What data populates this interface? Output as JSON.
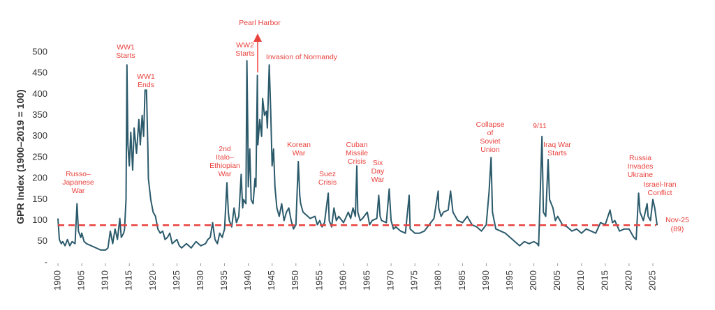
{
  "chart_data": {
    "type": "line",
    "y_label": "GPR Index (1900–2019 = 100)",
    "xlim": [
      1900,
      2025
    ],
    "xticks": [
      1900,
      1905,
      1910,
      1915,
      1920,
      1925,
      1930,
      1935,
      1940,
      1945,
      1950,
      1955,
      1960,
      1965,
      1970,
      1975,
      1980,
      1985,
      1990,
      1995,
      2000,
      2005,
      2010,
      2015,
      2020,
      2025
    ],
    "ylim": [
      0,
      500
    ],
    "yticks": [
      {
        "value": 0,
        "label": "-"
      },
      50,
      100,
      150,
      200,
      250,
      300,
      350,
      400,
      450,
      500
    ],
    "series": [
      {
        "color": "#2b5a6b",
        "x": [
          1900,
          1900.3,
          1900.7,
          1901,
          1901.5,
          1902,
          1902.5,
          1903,
          1903.6,
          1904,
          1904.3,
          1904.8,
          1905,
          1905.5,
          1906,
          1907,
          1908,
          1909,
          1910,
          1910.5,
          1911,
          1911.5,
          1912,
          1912.5,
          1913,
          1913.3,
          1913.8,
          1914,
          1914.3,
          1914.5,
          1914.7,
          1915,
          1915.3,
          1915.7,
          1916,
          1916.5,
          1917,
          1917.3,
          1917.7,
          1918,
          1918.3,
          1918.6,
          1918.9,
          1919,
          1919.5,
          1920,
          1920.5,
          1921,
          1921.5,
          1922,
          1922.5,
          1923,
          1923.5,
          1924,
          1925,
          1925.5,
          1926,
          1927,
          1928,
          1929,
          1930,
          1931,
          1931.5,
          1932,
          1932.5,
          1933,
          1933.5,
          1934,
          1934.5,
          1935,
          1935.5,
          1935.8,
          1936,
          1936.5,
          1937,
          1937.5,
          1938,
          1938.5,
          1938.8,
          1939,
          1939.5,
          1939.7,
          1939.9,
          1940,
          1940.3,
          1940.6,
          1941,
          1941.4,
          1941.6,
          1941.9,
          1942,
          1942.4,
          1942.8,
          1943,
          1943.4,
          1943.8,
          1944,
          1944.4,
          1944.7,
          1945,
          1945.3,
          1945.6,
          1946,
          1946.5,
          1947,
          1947.5,
          1948,
          1948.5,
          1949,
          1949.5,
          1950,
          1950.5,
          1950.8,
          1951,
          1951.5,
          1952,
          1953,
          1954,
          1954.5,
          1955,
          1955.5,
          1956,
          1956.8,
          1957,
          1957.5,
          1958,
          1958.5,
          1959,
          1960,
          1961,
          1961.5,
          1962,
          1962.5,
          1962.8,
          1963,
          1963.5,
          1964,
          1965,
          1965.5,
          1966,
          1967,
          1967.4,
          1967.7,
          1968,
          1969,
          1969.6,
          1970,
          1970.5,
          1971,
          1972,
          1973,
          1973.8,
          1974,
          1975,
          1976,
          1977,
          1978,
          1979,
          1979.9,
          1980,
          1980.5,
          1981,
          1982,
          1982.5,
          1983,
          1984,
          1985,
          1986,
          1987,
          1988,
          1989,
          1990,
          1990.6,
          1991,
          1991.3,
          1992,
          1993,
          1994,
          1995,
          1996,
          1997,
          1998,
          1999,
          2000,
          2000.7,
          2001,
          2001.7,
          2001.9,
          2002,
          2002.5,
          2003,
          2003.3,
          2004,
          2004.5,
          2005,
          2006,
          2007,
          2008,
          2009,
          2010,
          2011,
          2012,
          2013,
          2014,
          2015,
          2016,
          2016.5,
          2017,
          2018,
          2019,
          2020,
          2021,
          2021.5,
          2022,
          2022.3,
          2023,
          2023.8,
          2024,
          2024.5,
          2025,
          2025.4,
          2025.9
        ],
        "values": [
          105,
          55,
          45,
          50,
          40,
          55,
          40,
          50,
          45,
          140,
          75,
          60,
          70,
          50,
          45,
          40,
          35,
          30,
          30,
          35,
          75,
          45,
          80,
          55,
          105,
          60,
          70,
          80,
          150,
          470,
          280,
          230,
          310,
          220,
          320,
          260,
          340,
          280,
          350,
          300,
          410,
          410,
          270,
          200,
          150,
          120,
          110,
          80,
          70,
          75,
          55,
          60,
          70,
          45,
          55,
          40,
          35,
          45,
          35,
          50,
          40,
          45,
          55,
          60,
          95,
          55,
          45,
          70,
          60,
          80,
          190,
          120,
          100,
          85,
          130,
          95,
          110,
          210,
          130,
          150,
          140,
          480,
          300,
          180,
          270,
          150,
          140,
          200,
          180,
          445,
          280,
          340,
          300,
          390,
          350,
          360,
          320,
          470,
          360,
          230,
          270,
          180,
          130,
          110,
          140,
          100,
          120,
          130,
          100,
          80,
          90,
          240,
          160,
          140,
          120,
          115,
          105,
          110,
          90,
          100,
          85,
          95,
          165,
          100,
          85,
          130,
          100,
          110,
          95,
          120,
          105,
          130,
          110,
          230,
          120,
          100,
          105,
          120,
          90,
          100,
          105,
          160,
          110,
          100,
          95,
          175,
          100,
          80,
          85,
          75,
          70,
          160,
          80,
          70,
          70,
          75,
          90,
          105,
          170,
          130,
          110,
          120,
          125,
          170,
          120,
          100,
          95,
          110,
          90,
          85,
          75,
          90,
          170,
          250,
          120,
          80,
          75,
          70,
          60,
          50,
          40,
          50,
          45,
          50,
          45,
          40,
          300,
          180,
          120,
          110,
          245,
          150,
          130,
          100,
          110,
          90,
          85,
          75,
          80,
          70,
          80,
          75,
          70,
          95,
          90,
          125,
          95,
          100,
          75,
          80,
          80,
          60,
          55,
          165,
          120,
          100,
          140,
          110,
          100,
          150,
          130,
          89
        ]
      }
    ],
    "reference_line": {
      "value": 89,
      "color": "#e8423d",
      "label_lines": [
        "Nov-25",
        "(89)"
      ]
    },
    "annotations": [
      [
        "Russo–",
        "Japanese",
        "War"
      ],
      [
        "WW1",
        "Starts"
      ],
      [
        "WW1",
        "Ends"
      ],
      [
        "Pearl Harbor"
      ],
      [
        "WW2",
        "Starts"
      ],
      [
        "Invasion of Normandy"
      ],
      [
        "2nd",
        "Italo–",
        "Ethiopian",
        "War"
      ],
      [
        "Korean",
        "War"
      ],
      [
        "Suez",
        "Crisis"
      ],
      [
        "Cuban",
        "Missile",
        "Crisis"
      ],
      [
        "Six",
        "Day",
        "War"
      ],
      [
        "Collapse",
        "of",
        "Soviet",
        "Union"
      ],
      [
        "9/11"
      ],
      [
        "Iraq War",
        "Starts"
      ],
      [
        "Russia",
        "Invades",
        "Ukraine"
      ],
      [
        "Israel-Iran",
        "Conflict"
      ]
    ]
  }
}
